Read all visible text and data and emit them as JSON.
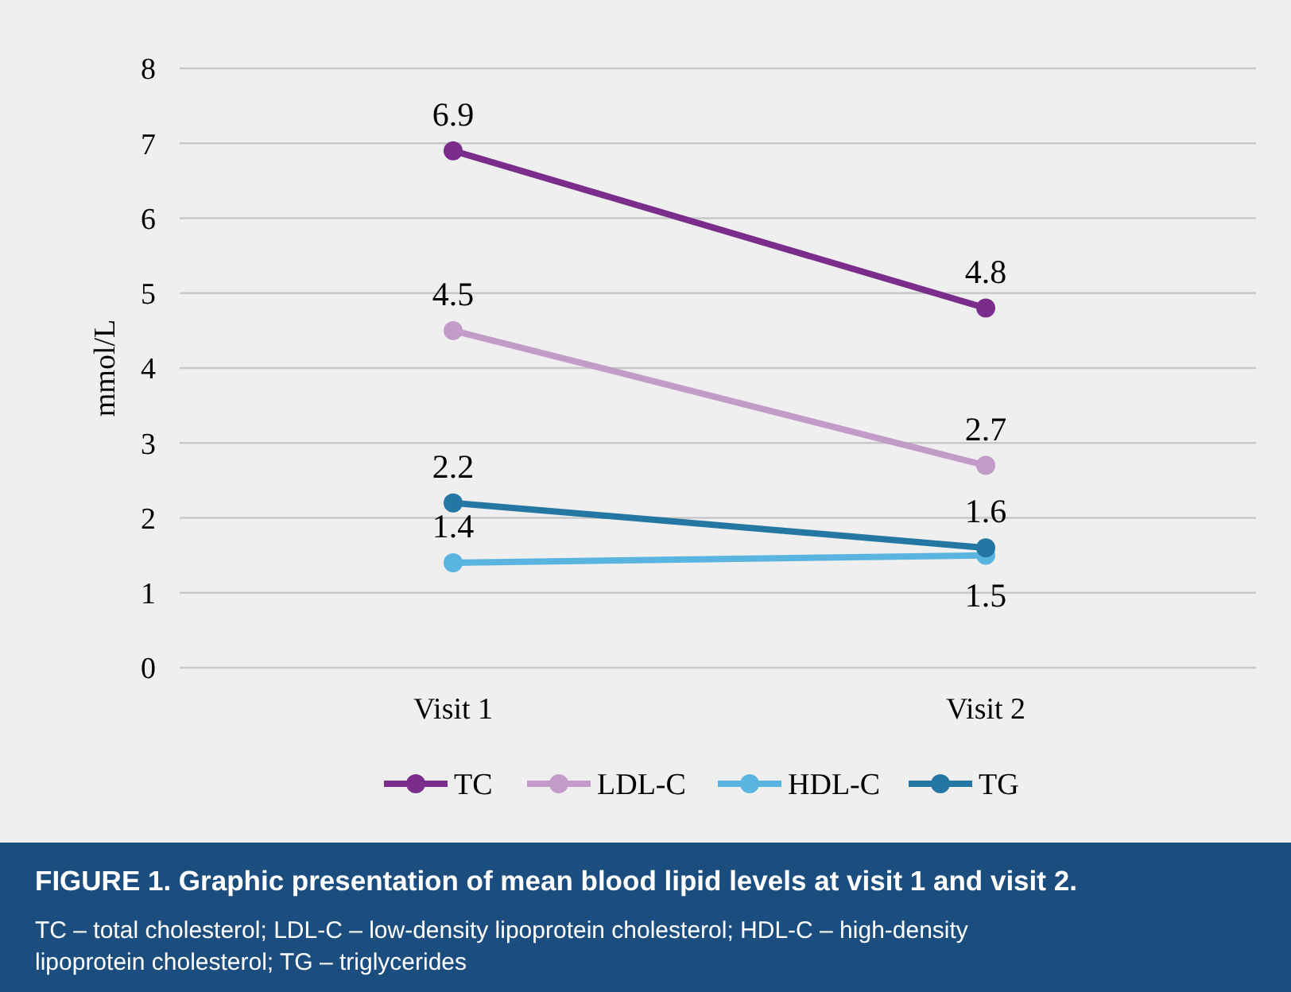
{
  "chart_data": {
    "type": "line",
    "title": "FIGURE 1. Graphic presentation of mean blood lipid levels at visit 1 and visit 2.",
    "ylabel": "mmol/L",
    "categories": [
      "Visit 1",
      "Visit 2"
    ],
    "series": [
      {
        "name": "TC",
        "color": "#7b2d8b",
        "values": [
          6.9,
          4.8
        ]
      },
      {
        "name": "LDL-C",
        "color": "#c39bc8",
        "values": [
          4.5,
          2.7
        ]
      },
      {
        "name": "HDL-C",
        "color": "#5ab4e0",
        "values": [
          1.4,
          1.5
        ]
      },
      {
        "name": "TG",
        "color": "#2577a3",
        "values": [
          2.2,
          1.6
        ]
      }
    ],
    "ylim": [
      0,
      8
    ],
    "yticks": [
      0,
      1,
      2,
      3,
      4,
      5,
      6,
      7,
      8
    ],
    "grid": "y",
    "legend": "bottom",
    "marker": "circle",
    "line_style": "solid",
    "data_labels": true,
    "annotations": [
      "TC – total cholesterol; LDL-C – low-density lipoprotein cholesterol; HDL-C – high-density lipoprotein cholesterol; TG – triglycerides"
    ]
  }
}
